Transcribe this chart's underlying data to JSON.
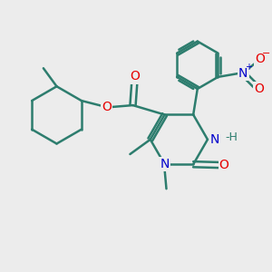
{
  "bg_color": "#ececec",
  "bond_color": "#2d7d6e",
  "bond_width": 1.8,
  "atom_colors": {
    "O": "#e60000",
    "N": "#0000cc",
    "C": "#2d7d6e"
  },
  "font_size_atom": 10,
  "fig_bg": "#ececec"
}
